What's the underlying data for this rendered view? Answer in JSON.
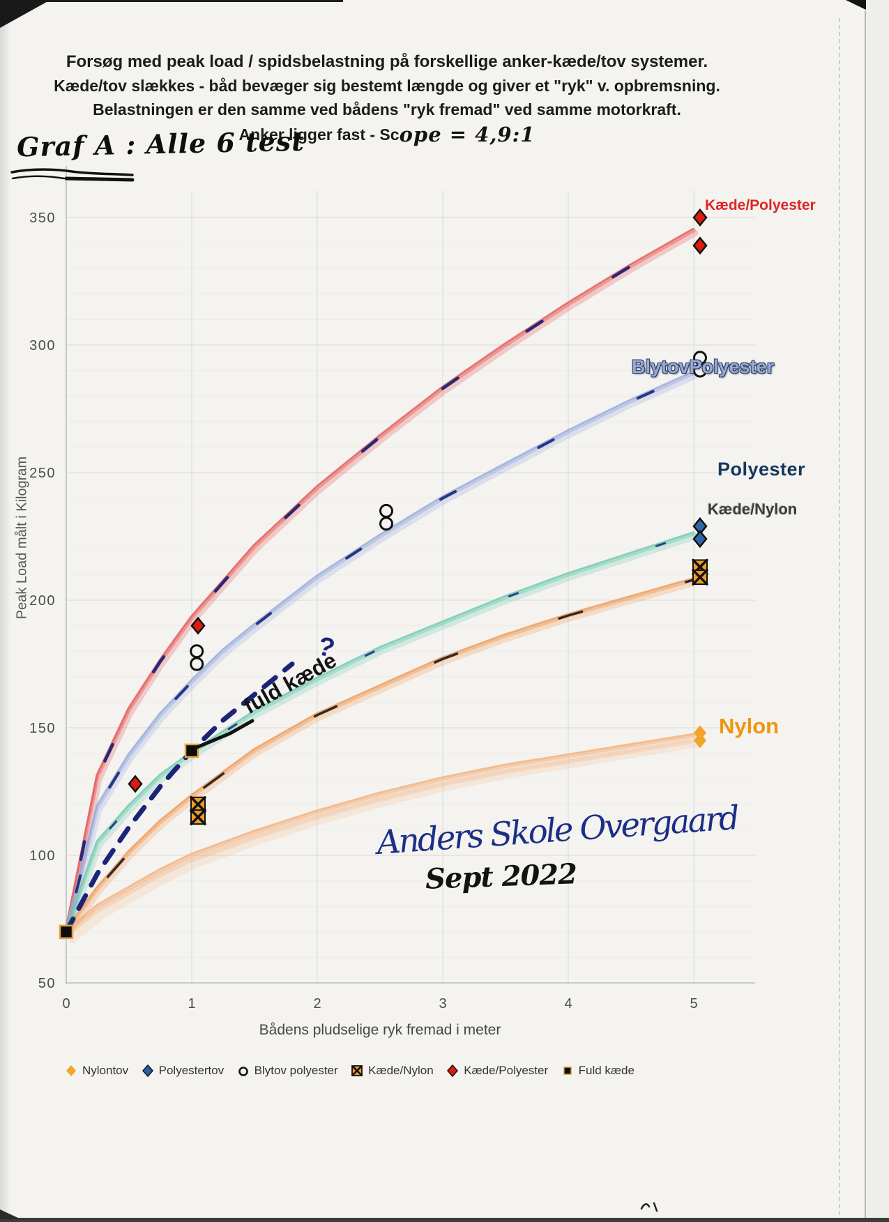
{
  "page": {
    "title_lines": [
      "Forsøg med peak load / spidsbelastning  på forskellige anker-kæde/tov systemer.",
      "Kæde/tov slækkes - båd bevæger sig bestemt længde og giver et \"ryk\" v. opbremsning.",
      "Belastningen er den samme ved bådens \"ryk fremad\" ved samme motorkraft.",
      "Anker ligger fast - Sc"
    ]
  },
  "annotations": {
    "graf_a": "Graf A : Alle 6 test",
    "scope_handwritten": "ope = 4,9:1",
    "fuld_kaede": "fuld kæde",
    "question_mark": "?",
    "signature": "Anders Skole Overgaard",
    "date": "Sept 2022"
  },
  "chart_data": {
    "type": "scatter",
    "x_axis": {
      "label": "Bådens pludselige ryk fremad i meter",
      "ticks": [
        0,
        1,
        2,
        3,
        4,
        5
      ],
      "range": [
        0,
        5.5
      ]
    },
    "y_axis": {
      "label": "Peak Load målt i Kilogram",
      "ticks": [
        350,
        300,
        250,
        200,
        150,
        100,
        50
      ],
      "range": [
        50,
        360
      ],
      "minor_step": 10
    },
    "grid": "on",
    "series_labels": [
      {
        "text": "Kæde/Polyester"
      },
      {
        "text": "BlytovPolyester"
      },
      {
        "text": "Polyester"
      },
      {
        "text": "Kæde/Nylon"
      },
      {
        "text": "Nylon"
      }
    ],
    "series": [
      {
        "name": "Kæde/Polyester",
        "style": "pencil",
        "color": "#e4504e",
        "dash": {
          "color": "#1b2478",
          "width": 4.5,
          "array": "26 120",
          "offset": 40,
          "opacity": 0.95
        },
        "trend": [
          [
            0,
            70
          ],
          [
            0.25,
            131
          ],
          [
            0.5,
            157
          ],
          [
            0.75,
            176
          ],
          [
            1,
            193
          ],
          [
            1.25,
            207
          ],
          [
            1.5,
            221
          ],
          [
            2,
            244
          ],
          [
            2.5,
            264
          ],
          [
            3,
            283
          ],
          [
            3.5,
            300
          ],
          [
            4,
            316
          ],
          [
            4.5,
            331
          ],
          [
            5,
            345
          ]
        ],
        "points": [
          {
            "x": 0.55,
            "v": 128,
            "m": "diamond-red"
          },
          {
            "x": 1.05,
            "v": 190,
            "m": "diamond-red"
          },
          {
            "x": 5.05,
            "v": 350,
            "m": "diamond-red"
          },
          {
            "x": 5.05,
            "v": 339,
            "m": "diamond-red"
          }
        ]
      },
      {
        "name": "BlytovPolyester",
        "style": "pencil",
        "color": "#93a6dc",
        "dash": {
          "color": "#1b2478",
          "width": 4,
          "array": "24 135",
          "offset": 100,
          "opacity": 0.9
        },
        "trend": [
          [
            0,
            70
          ],
          [
            0.25,
            119
          ],
          [
            0.5,
            139
          ],
          [
            0.75,
            155
          ],
          [
            1,
            168
          ],
          [
            1.25,
            180
          ],
          [
            1.5,
            190
          ],
          [
            2,
            209
          ],
          [
            2.5,
            225
          ],
          [
            3,
            240
          ],
          [
            3.5,
            253
          ],
          [
            4,
            266
          ],
          [
            4.5,
            278
          ],
          [
            5,
            289
          ]
        ],
        "points": [
          {
            "x": 1.04,
            "v": 180,
            "m": "circle-open"
          },
          {
            "x": 1.04,
            "v": 175,
            "m": "circle-open"
          },
          {
            "x": 2.55,
            "v": 235,
            "m": "circle-open"
          },
          {
            "x": 2.55,
            "v": 230,
            "m": "circle-open"
          },
          {
            "x": 5.05,
            "v": 295,
            "m": "circle-open"
          },
          {
            "x": 5.05,
            "v": 290,
            "m": "circle-open"
          }
        ]
      },
      {
        "name": "Polyester",
        "style": "pencil",
        "color": "#68c8ae",
        "dash": {
          "color": "#1b2478",
          "width": 3,
          "array": "13 210",
          "offset": 60,
          "opacity": 0.85
        },
        "trend": [
          [
            0,
            70
          ],
          [
            0.25,
            105
          ],
          [
            0.5,
            119
          ],
          [
            0.75,
            131
          ],
          [
            1,
            140
          ],
          [
            1.5,
            156
          ],
          [
            2,
            169
          ],
          [
            2.5,
            181
          ],
          [
            3,
            191
          ],
          [
            3.5,
            201
          ],
          [
            4,
            210
          ],
          [
            4.5,
            218
          ],
          [
            5,
            226
          ]
        ],
        "points": [
          {
            "x": 5.05,
            "v": 229,
            "m": "diamond-blue"
          },
          {
            "x": 5.05,
            "v": 224,
            "m": "diamond-blue"
          }
        ]
      },
      {
        "name": "Kæde/Nylon",
        "style": "pencil",
        "color": "#ef9550",
        "dash": {
          "color": "#1a1a1a",
          "width": 3.5,
          "array": "34 155",
          "offset": 90,
          "opacity": 0.9
        },
        "trend": [
          [
            0,
            70
          ],
          [
            0.25,
            87
          ],
          [
            0.5,
            101
          ],
          [
            0.75,
            113
          ],
          [
            1,
            123
          ],
          [
            1.5,
            141
          ],
          [
            2,
            155
          ],
          [
            2.5,
            166
          ],
          [
            3,
            177
          ],
          [
            3.5,
            186
          ],
          [
            4,
            194
          ],
          [
            4.5,
            201
          ],
          [
            5,
            208
          ]
        ],
        "points": [
          {
            "x": 1.05,
            "v": 120,
            "m": "square-x"
          },
          {
            "x": 1.05,
            "v": 115,
            "m": "square-x"
          },
          {
            "x": 5.05,
            "v": 213,
            "m": "square-x"
          },
          {
            "x": 5.05,
            "v": 209,
            "m": "square-x"
          }
        ]
      },
      {
        "name": "Nylon",
        "style": "pencil-smudge",
        "color": "#f2ae76",
        "trend": [
          [
            0,
            70
          ],
          [
            0.25,
            80
          ],
          [
            0.5,
            87
          ],
          [
            0.75,
            94
          ],
          [
            1,
            100
          ],
          [
            1.5,
            109
          ],
          [
            2,
            117
          ],
          [
            2.5,
            124
          ],
          [
            3,
            130
          ],
          [
            3.5,
            135
          ],
          [
            4,
            139
          ],
          [
            4.5,
            143
          ],
          [
            5,
            147
          ]
        ],
        "points": [
          {
            "x": 5.05,
            "v": 148,
            "m": "diamond-orange"
          },
          {
            "x": 5.05,
            "v": 145,
            "m": "diamond-orange"
          }
        ]
      },
      {
        "name": "Fuld kæde",
        "style": "dashed",
        "color": "#1b2478",
        "width": 7,
        "array": "21 17",
        "trend": [
          [
            0,
            70
          ],
          [
            0.25,
            93
          ],
          [
            0.5,
            111
          ],
          [
            0.75,
            127
          ],
          [
            1,
            141
          ],
          [
            1.25,
            153
          ],
          [
            1.5,
            163
          ],
          [
            1.8,
            175
          ]
        ],
        "points": [
          {
            "x": 0,
            "v": 70,
            "m": "square-black"
          },
          {
            "x": 1,
            "v": 141,
            "m": "square-black"
          }
        ]
      }
    ]
  },
  "legend": {
    "items": [
      {
        "label": "Nylontov",
        "marker": "diamond-orange"
      },
      {
        "label": "Polyestertov",
        "marker": "diamond-navy"
      },
      {
        "label": "Blytov polyester",
        "marker": "circle-open"
      },
      {
        "label": "Kæde/Nylon",
        "marker": "square-x"
      },
      {
        "label": "Kæde/Polyester",
        "marker": "diamond-red"
      },
      {
        "label": "Fuld kæde",
        "marker": "square-black"
      }
    ]
  }
}
